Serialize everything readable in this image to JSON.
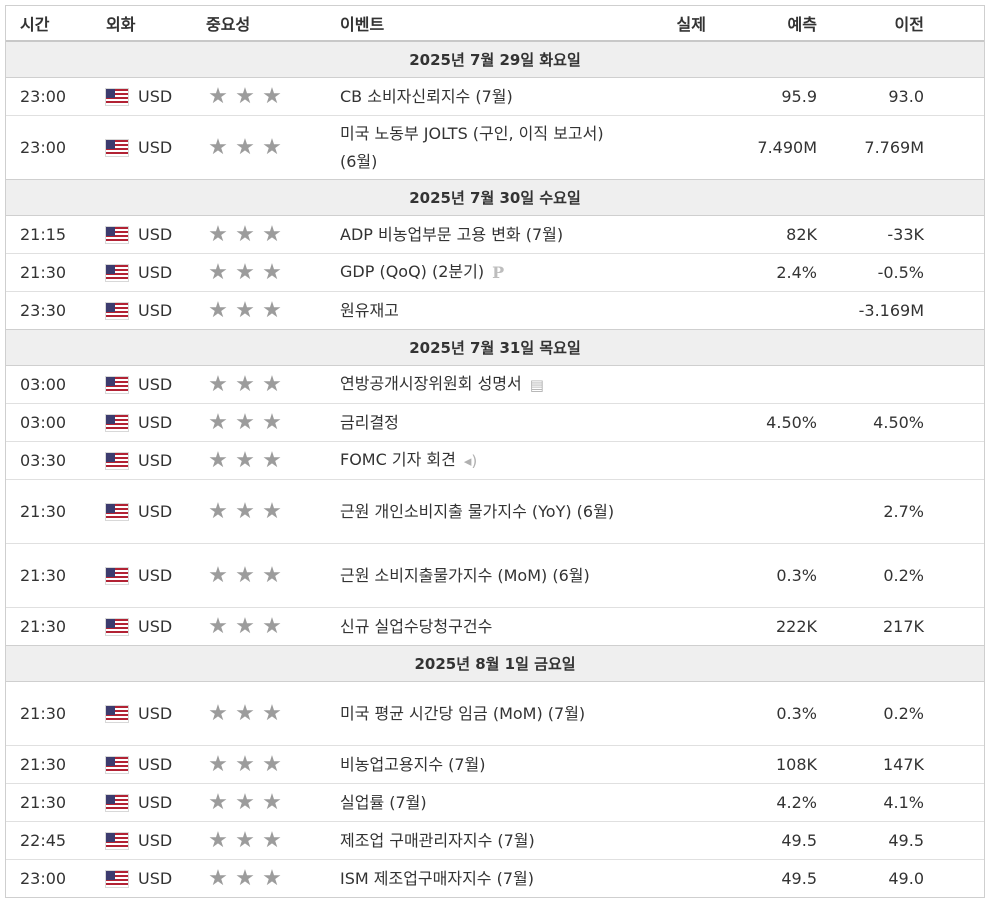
{
  "headers": {
    "time": "시간",
    "currency": "외화",
    "importance": "중요성",
    "event": "이벤트",
    "actual": "실제",
    "forecast": "예측",
    "previous": "이전"
  },
  "groups": [
    {
      "date": "2025년 7월 29일 화요일",
      "rows": [
        {
          "time": "23:00",
          "currency": "USD",
          "event": "CB 소비자신뢰지수 (7월)",
          "actual": "",
          "forecast": "95.9",
          "previous": "93.0",
          "icon": ""
        },
        {
          "time": "23:00",
          "currency": "USD",
          "event": "미국 노동부 JOLTS (구인, 이직 보고서) (6월)",
          "actual": "",
          "forecast": "7.490M",
          "previous": "7.769M",
          "icon": "",
          "tall": true
        }
      ]
    },
    {
      "date": "2025년 7월 30일 수요일",
      "rows": [
        {
          "time": "21:15",
          "currency": "USD",
          "event": "ADP 비농업부문 고용 변화 (7월)",
          "actual": "",
          "forecast": "82K",
          "previous": "-33K",
          "icon": ""
        },
        {
          "time": "21:30",
          "currency": "USD",
          "event": "GDP (QoQ) (2분기)",
          "actual": "",
          "forecast": "2.4%",
          "previous": "-0.5%",
          "icon": "preliminary-icon"
        },
        {
          "time": "23:30",
          "currency": "USD",
          "event": "원유재고",
          "actual": "",
          "forecast": "",
          "previous": "-3.169M",
          "icon": ""
        }
      ]
    },
    {
      "date": "2025년 7월 31일 목요일",
      "rows": [
        {
          "time": "03:00",
          "currency": "USD",
          "event": "연방공개시장위원회 성명서",
          "actual": "",
          "forecast": "",
          "previous": "",
          "icon": "document-icon"
        },
        {
          "time": "03:00",
          "currency": "USD",
          "event": "금리결정",
          "actual": "",
          "forecast": "4.50%",
          "previous": "4.50%",
          "icon": ""
        },
        {
          "time": "03:30",
          "currency": "USD",
          "event": "FOMC 기자 회견",
          "actual": "",
          "forecast": "",
          "previous": "",
          "icon": "speaker-icon"
        },
        {
          "time": "21:30",
          "currency": "USD",
          "event": "근원 개인소비지출 물가지수 (YoY) (6월)",
          "actual": "",
          "forecast": "",
          "previous": "2.7%",
          "icon": "",
          "tall": true
        },
        {
          "time": "21:30",
          "currency": "USD",
          "event": "근원 소비지출물가지수 (MoM) (6월)",
          "actual": "",
          "forecast": "0.3%",
          "previous": "0.2%",
          "icon": "",
          "tall": true
        },
        {
          "time": "21:30",
          "currency": "USD",
          "event": "신규 실업수당청구건수",
          "actual": "",
          "forecast": "222K",
          "previous": "217K",
          "icon": ""
        }
      ]
    },
    {
      "date": "2025년 8월 1일 금요일",
      "rows": [
        {
          "time": "21:30",
          "currency": "USD",
          "event": "미국 평균 시간당 임금 (MoM) (7월)",
          "actual": "",
          "forecast": "0.3%",
          "previous": "0.2%",
          "icon": "",
          "tall": true
        },
        {
          "time": "21:30",
          "currency": "USD",
          "event": "비농업고용지수 (7월)",
          "actual": "",
          "forecast": "108K",
          "previous": "147K",
          "icon": ""
        },
        {
          "time": "21:30",
          "currency": "USD",
          "event": "실업률 (7월)",
          "actual": "",
          "forecast": "4.2%",
          "previous": "4.1%",
          "icon": ""
        },
        {
          "time": "22:45",
          "currency": "USD",
          "event": "제조업 구매관리자지수 (7월)",
          "actual": "",
          "forecast": "49.5",
          "previous": "49.5",
          "icon": ""
        },
        {
          "time": "23:00",
          "currency": "USD",
          "event": "ISM 제조업구매자지수 (7월)",
          "actual": "",
          "forecast": "49.5",
          "previous": "49.0",
          "icon": ""
        }
      ]
    }
  ],
  "importance_level": 3,
  "icons": {
    "flag": "us-flag-icon",
    "star": "star-icon"
  },
  "colors": {
    "date_row_bg": "#efefef",
    "star": "#9c9c9c",
    "border": "#cfcfcf"
  }
}
